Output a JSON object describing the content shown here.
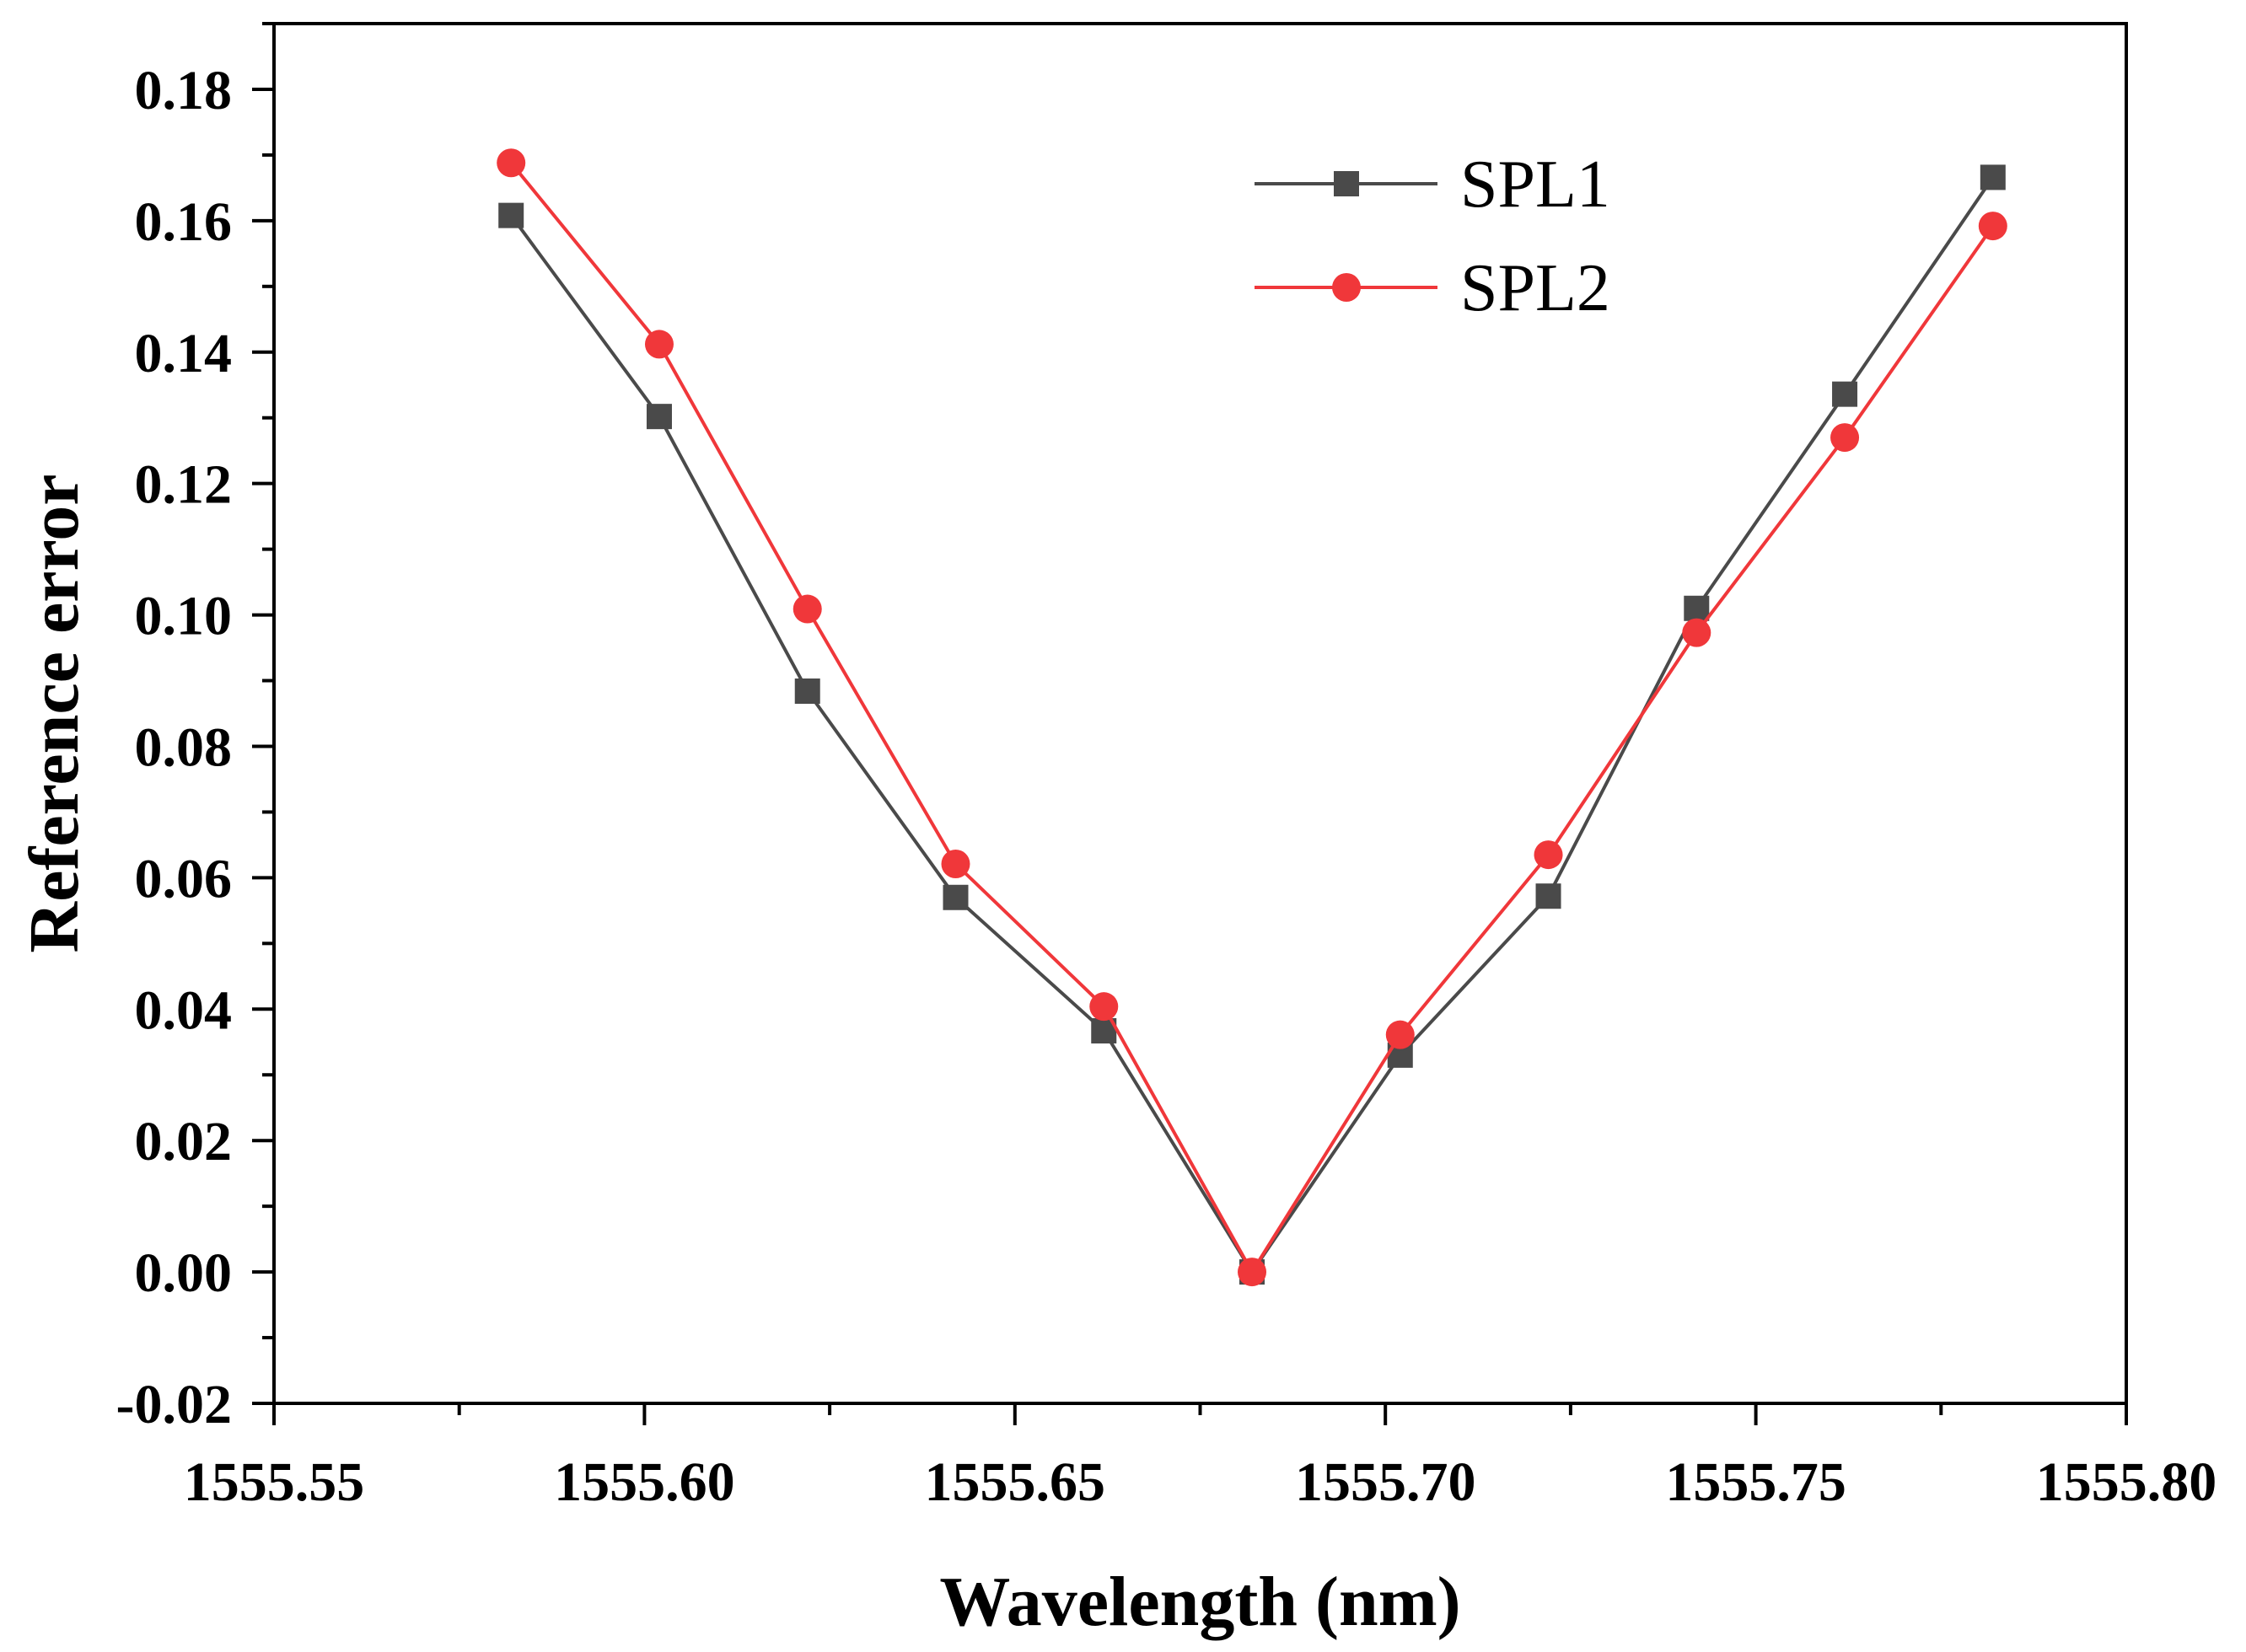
{
  "chart_data": {
    "type": "line",
    "title": "",
    "xlabel": "Wavelength (nm)",
    "ylabel": "Reference error",
    "xlim": [
      1555.55,
      1555.8
    ],
    "ylim": [
      -0.02,
      0.19
    ],
    "xticks": [
      1555.55,
      1555.6,
      1555.65,
      1555.7,
      1555.75,
      1555.8
    ],
    "xtick_labels": [
      "1555.55",
      "1555.60",
      "1555.65",
      "1555.70",
      "1555.75",
      "1555.80"
    ],
    "yticks": [
      -0.02,
      0.0,
      0.02,
      0.04,
      0.06,
      0.08,
      0.1,
      0.12,
      0.14,
      0.16,
      0.18
    ],
    "ytick_labels": [
      "-0.02",
      "0.00",
      "0.02",
      "0.04",
      "0.06",
      "0.08",
      "0.10",
      "0.12",
      "0.14",
      "0.16",
      "0.18"
    ],
    "grid": false,
    "legend_position": "top-right",
    "x": [
      1555.582,
      1555.602,
      1555.622,
      1555.642,
      1555.662,
      1555.682,
      1555.702,
      1555.722,
      1555.742,
      1555.762,
      1555.782
    ],
    "series": [
      {
        "name": "SPL1",
        "color": "#4a4a4a",
        "marker": "square",
        "values": [
          0.1608,
          0.1302,
          0.0884,
          0.057,
          0.0367,
          0.0,
          0.033,
          0.0572,
          0.101,
          0.1336,
          0.1666
        ]
      },
      {
        "name": "SPL2",
        "color": "#f0373a",
        "marker": "circle",
        "values": [
          0.1688,
          0.1412,
          0.1009,
          0.0621,
          0.0404,
          0.0,
          0.0361,
          0.0635,
          0.0973,
          0.127,
          0.1592
        ]
      }
    ]
  }
}
